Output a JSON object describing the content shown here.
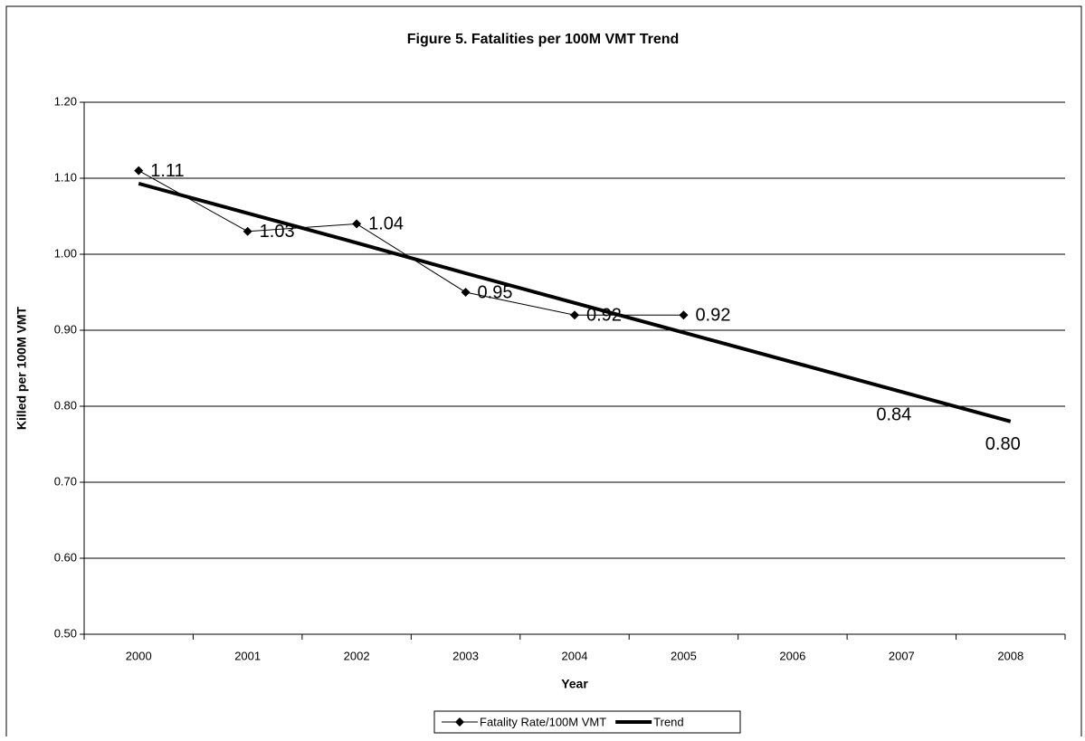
{
  "chart_data": {
    "type": "line",
    "title": "Figure 5. Fatalities per 100M VMT Trend",
    "x_label": "Year",
    "y_label": "Killed per 100M VMT",
    "categories": [
      "2000",
      "2001",
      "2002",
      "2003",
      "2004",
      "2005",
      "2006",
      "2007",
      "2008"
    ],
    "series": [
      {
        "name": "Fatality Rate/100M VMT",
        "color": "#000000",
        "marker": "diamond",
        "line_width": 1,
        "values": [
          1.11,
          1.03,
          1.04,
          0.95,
          0.92,
          0.92,
          null,
          null,
          null
        ],
        "data_labels": true
      },
      {
        "name": "Trend",
        "color": "#000000",
        "marker": "none",
        "line_width": 4,
        "values": [
          1.093,
          1.054,
          1.015,
          0.975,
          0.936,
          0.897,
          0.858,
          0.819,
          0.78
        ],
        "data_labels": false
      }
    ],
    "annotations": [
      {
        "text": "0.84",
        "x": "2007"
      },
      {
        "text": "0.80",
        "x": "2008"
      }
    ],
    "ylim": [
      0.5,
      1.2
    ],
    "yticks": [
      {
        "value": 0.5,
        "label": "0.50"
      },
      {
        "value": 0.6,
        "label": "0.60"
      },
      {
        "value": 0.7,
        "label": "0.70"
      },
      {
        "value": 0.8,
        "label": "0.80"
      },
      {
        "value": 0.9,
        "label": "0.90"
      },
      {
        "value": 1.0,
        "label": "1.00"
      },
      {
        "value": 1.1,
        "label": "1.10"
      },
      {
        "value": 1.2,
        "label": "1.20"
      }
    ],
    "grid": true,
    "legend": "bottom"
  }
}
